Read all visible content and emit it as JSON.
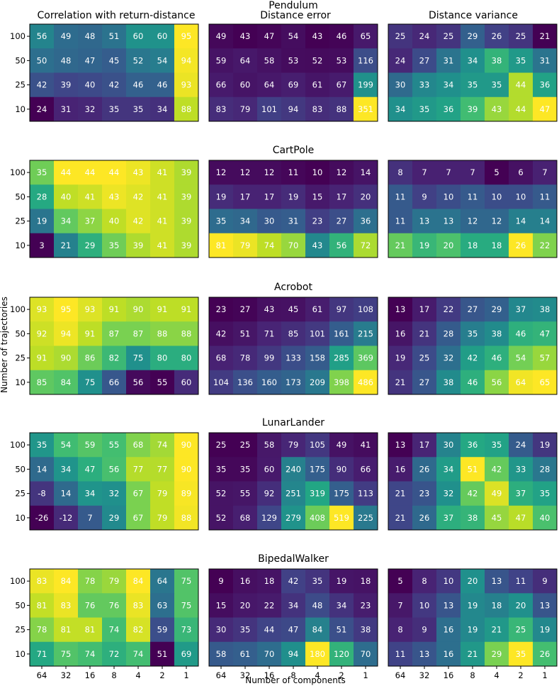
{
  "chart_data": {
    "type": "heatmap",
    "column_titles": [
      "Correlation with return-distance",
      "Distance error",
      "Distance variance"
    ],
    "xlabel": "Number of components",
    "ylabel": "Number of trajectories",
    "x_ticks": [
      "64",
      "32",
      "16",
      "8",
      "4",
      "2",
      "1"
    ],
    "y_ticks": [
      "100",
      "50",
      "25",
      "10"
    ],
    "colormap": "viridis",
    "environments": [
      {
        "name": "Pendulum",
        "panels": [
          {
            "metric": "Correlation with return-distance",
            "values": [
              [
                56,
                49,
                48,
                51,
                60,
                60,
                95
              ],
              [
                50,
                48,
                47,
                45,
                52,
                54,
                94
              ],
              [
                42,
                39,
                40,
                42,
                46,
                46,
                93
              ],
              [
                24,
                31,
                32,
                35,
                35,
                34,
                88
              ]
            ]
          },
          {
            "metric": "Distance error",
            "values": [
              [
                49,
                43,
                47,
                54,
                43,
                46,
                65
              ],
              [
                59,
                64,
                58,
                53,
                52,
                53,
                116
              ],
              [
                66,
                60,
                64,
                69,
                61,
                67,
                199
              ],
              [
                83,
                79,
                101,
                94,
                83,
                88,
                351
              ]
            ]
          },
          {
            "metric": "Distance variance",
            "values": [
              [
                25,
                24,
                25,
                29,
                26,
                25,
                21
              ],
              [
                24,
                27,
                31,
                34,
                38,
                35,
                31
              ],
              [
                30,
                33,
                34,
                35,
                35,
                44,
                36
              ],
              [
                34,
                35,
                36,
                39,
                43,
                44,
                47
              ]
            ]
          }
        ]
      },
      {
        "name": "CartPole",
        "panels": [
          {
            "metric": "Correlation with return-distance",
            "values": [
              [
                35,
                44,
                44,
                44,
                43,
                41,
                39
              ],
              [
                28,
                40,
                41,
                43,
                42,
                41,
                39
              ],
              [
                19,
                34,
                37,
                40,
                42,
                41,
                39
              ],
              [
                3,
                21,
                29,
                35,
                39,
                41,
                39
              ]
            ]
          },
          {
            "metric": "Distance error",
            "values": [
              [
                12,
                12,
                12,
                11,
                10,
                12,
                14
              ],
              [
                19,
                17,
                17,
                19,
                15,
                17,
                20
              ],
              [
                35,
                34,
                30,
                31,
                23,
                27,
                36
              ],
              [
                81,
                79,
                74,
                70,
                43,
                56,
                72
              ]
            ]
          },
          {
            "metric": "Distance variance",
            "values": [
              [
                8,
                7,
                7,
                7,
                5,
                6,
                7
              ],
              [
                11,
                9,
                10,
                11,
                10,
                10,
                11
              ],
              [
                11,
                13,
                13,
                12,
                12,
                14,
                14
              ],
              [
                21,
                19,
                20,
                18,
                18,
                26,
                22
              ]
            ]
          }
        ]
      },
      {
        "name": "Acrobot",
        "panels": [
          {
            "metric": "Correlation with return-distance",
            "values": [
              [
                93,
                95,
                93,
                91,
                90,
                91,
                91
              ],
              [
                92,
                94,
                91,
                87,
                87,
                88,
                88
              ],
              [
                91,
                90,
                86,
                82,
                75,
                80,
                80
              ],
              [
                85,
                84,
                75,
                66,
                56,
                55,
                60
              ]
            ]
          },
          {
            "metric": "Distance error",
            "values": [
              [
                23,
                27,
                43,
                45,
                61,
                97,
                108
              ],
              [
                42,
                51,
                71,
                85,
                101,
                161,
                215
              ],
              [
                68,
                78,
                99,
                133,
                158,
                285,
                369
              ],
              [
                104,
                136,
                160,
                173,
                209,
                398,
                486
              ]
            ]
          },
          {
            "metric": "Distance variance",
            "values": [
              [
                13,
                17,
                22,
                27,
                29,
                37,
                38
              ],
              [
                16,
                21,
                28,
                35,
                38,
                46,
                47
              ],
              [
                19,
                25,
                32,
                42,
                46,
                54,
                57
              ],
              [
                21,
                27,
                38,
                46,
                56,
                64,
                65
              ]
            ]
          }
        ]
      },
      {
        "name": "LunarLander",
        "panels": [
          {
            "metric": "Correlation with return-distance",
            "values": [
              [
                35,
                54,
                59,
                55,
                68,
                74,
                90
              ],
              [
                14,
                34,
                47,
                56,
                77,
                77,
                90
              ],
              [
                -8,
                14,
                34,
                32,
                67,
                79,
                89
              ],
              [
                -26,
                -12,
                7,
                29,
                67,
                79,
                88
              ]
            ]
          },
          {
            "metric": "Distance error",
            "values": [
              [
                25,
                25,
                58,
                79,
                105,
                49,
                41
              ],
              [
                35,
                35,
                60,
                240,
                175,
                90,
                66
              ],
              [
                52,
                55,
                92,
                251,
                319,
                175,
                113
              ],
              [
                52,
                68,
                129,
                279,
                408,
                519,
                225
              ]
            ]
          },
          {
            "metric": "Distance variance",
            "values": [
              [
                13,
                17,
                30,
                36,
                35,
                24,
                19
              ],
              [
                16,
                26,
                34,
                51,
                42,
                33,
                28
              ],
              [
                21,
                23,
                32,
                42,
                49,
                37,
                35
              ],
              [
                21,
                26,
                37,
                38,
                45,
                47,
                40
              ]
            ]
          }
        ]
      },
      {
        "name": "BipedalWalker",
        "panels": [
          {
            "metric": "Correlation with return-distance",
            "values": [
              [
                83,
                84,
                78,
                79,
                84,
                64,
                75
              ],
              [
                81,
                83,
                76,
                76,
                83,
                63,
                75
              ],
              [
                78,
                81,
                81,
                74,
                82,
                59,
                73
              ],
              [
                71,
                75,
                74,
                72,
                74,
                51,
                69
              ]
            ]
          },
          {
            "metric": "Distance error",
            "values": [
              [
                9,
                16,
                18,
                42,
                35,
                19,
                18
              ],
              [
                15,
                20,
                22,
                34,
                48,
                34,
                23
              ],
              [
                30,
                35,
                44,
                47,
                84,
                51,
                38
              ],
              [
                58,
                61,
                70,
                94,
                180,
                120,
                70
              ]
            ]
          },
          {
            "metric": "Distance variance",
            "values": [
              [
                5,
                8,
                10,
                20,
                13,
                11,
                9
              ],
              [
                7,
                10,
                13,
                19,
                18,
                20,
                13
              ],
              [
                8,
                9,
                16,
                19,
                21,
                25,
                19
              ],
              [
                11,
                13,
                16,
                21,
                29,
                35,
                26
              ]
            ]
          }
        ]
      }
    ]
  }
}
